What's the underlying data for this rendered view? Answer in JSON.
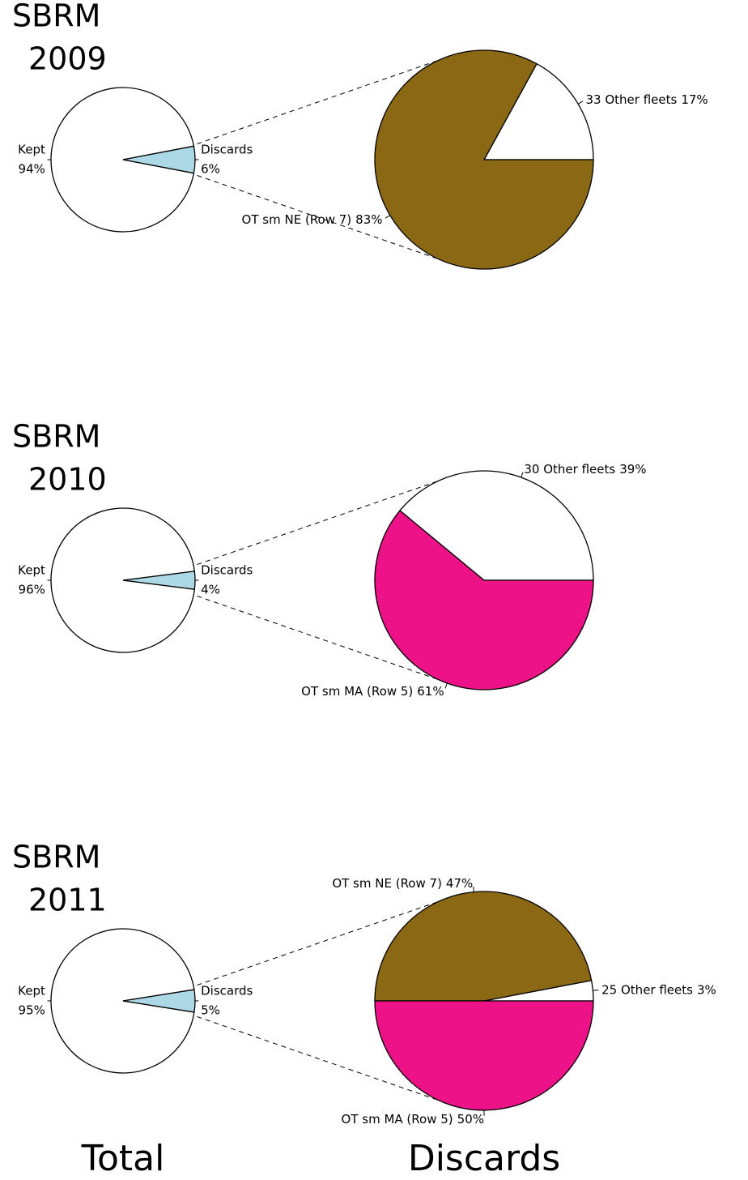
{
  "chart_data": [
    {
      "type": "pie",
      "title": "SBRM",
      "subtitle": "2009",
      "total": {
        "categories": [
          "Kept",
          "Discards"
        ],
        "values": [
          94,
          6
        ],
        "value_labels": [
          "94%",
          "6%"
        ],
        "colors": [
          "#ffffff",
          "#add8e6"
        ]
      },
      "discards": {
        "categories": [
          "33 Other fleets",
          "OT sm NE (Row 7)"
        ],
        "values": [
          17,
          83
        ],
        "value_labels": [
          "17%",
          "83%"
        ],
        "colors": [
          "#ffffff",
          "#8b6914"
        ]
      }
    },
    {
      "type": "pie",
      "title": "SBRM",
      "subtitle": "2010",
      "total": {
        "categories": [
          "Kept",
          "Discards"
        ],
        "values": [
          96,
          4
        ],
        "value_labels": [
          "96%",
          "4%"
        ],
        "colors": [
          "#ffffff",
          "#add8e6"
        ]
      },
      "discards": {
        "categories": [
          "30 Other fleets",
          "OT sm MA (Row 5)"
        ],
        "values": [
          39,
          61
        ],
        "value_labels": [
          "39%",
          "61%"
        ],
        "colors": [
          "#ffffff",
          "#ee1289"
        ]
      }
    },
    {
      "type": "pie",
      "title": "SBRM",
      "subtitle": "2011",
      "total": {
        "categories": [
          "Kept",
          "Discards"
        ],
        "values": [
          95,
          5
        ],
        "value_labels": [
          "95%",
          "5%"
        ],
        "colors": [
          "#ffffff",
          "#add8e6"
        ]
      },
      "discards": {
        "categories": [
          "25 Other fleets",
          "OT sm NE (Row 7)",
          "OT sm MA (Row 5)"
        ],
        "values": [
          3,
          47,
          50
        ],
        "value_labels": [
          "3%",
          "47%",
          "50%"
        ],
        "colors": [
          "#ffffff",
          "#8b6914",
          "#ee1289"
        ]
      }
    }
  ],
  "footer": {
    "left": "Total",
    "right": "Discards"
  }
}
